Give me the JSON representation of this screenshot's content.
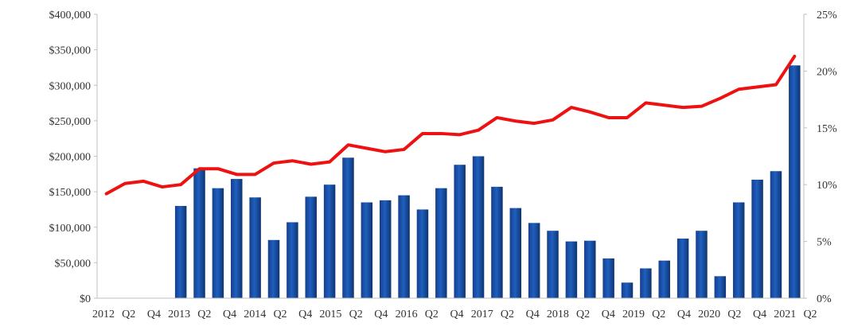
{
  "chart_data": {
    "type": "bar",
    "combo": "bar+line",
    "grid": false,
    "legend": "none",
    "colors": {
      "bars": "#1f5fbf",
      "line": "#ee1111"
    },
    "x_tick_labels": [
      "2012",
      "Q2",
      "Q4",
      "2013",
      "Q2",
      "Q4",
      "2014",
      "Q2",
      "Q4",
      "2015",
      "Q2",
      "Q4",
      "2016",
      "Q2",
      "Q4",
      "2017",
      "Q2",
      "Q4",
      "2018",
      "Q2",
      "Q4",
      "2019",
      "Q2",
      "Q4",
      "2020",
      "Q2",
      "Q4",
      "2021",
      "Q2"
    ],
    "left_axis": {
      "ylim": [
        0,
        400000
      ],
      "tick_labels": [
        "$0",
        "$50,000",
        "$100,000",
        "$150,000",
        "$200,000",
        "$250,000",
        "$300,000",
        "$350,000",
        "$400,000"
      ]
    },
    "right_axis": {
      "ylim": [
        0,
        25
      ],
      "tick_labels": [
        "0%",
        "5%",
        "10%",
        "15%",
        "20%",
        "25%"
      ]
    },
    "series": [
      {
        "type": "bar",
        "axis": "left",
        "values": [
          null,
          null,
          null,
          null,
          130000,
          183000,
          155000,
          168000,
          142000,
          82000,
          107000,
          143000,
          160000,
          198000,
          135000,
          138000,
          145000,
          125000,
          155000,
          188000,
          200000,
          157000,
          127000,
          106000,
          95000,
          80000,
          81000,
          56000,
          22000,
          42000,
          53000,
          84000,
          95000,
          31000,
          135000,
          167000,
          179000,
          328000
        ]
      },
      {
        "type": "line",
        "axis": "right",
        "values": [
          9.2,
          10.1,
          10.3,
          9.8,
          10.0,
          11.4,
          11.4,
          10.9,
          10.9,
          11.9,
          12.1,
          11.8,
          12.0,
          13.5,
          13.2,
          12.9,
          13.1,
          14.5,
          14.5,
          14.4,
          14.8,
          15.9,
          15.6,
          15.4,
          15.7,
          16.8,
          16.4,
          15.9,
          15.9,
          17.2,
          17.0,
          16.8,
          16.9,
          17.6,
          18.4,
          18.6,
          18.8,
          21.3
        ]
      }
    ]
  }
}
